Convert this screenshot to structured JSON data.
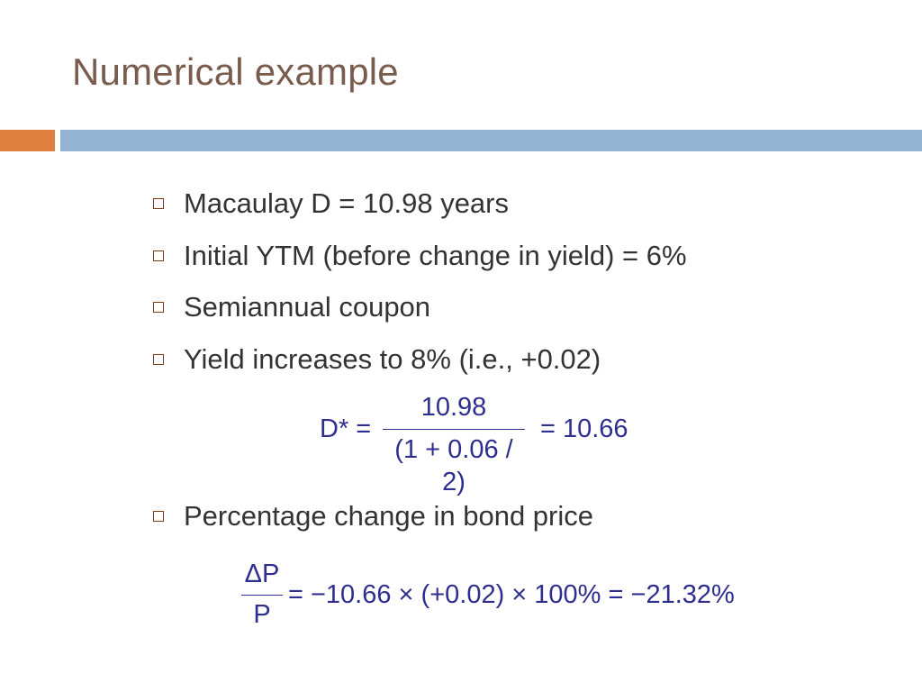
{
  "slide": {
    "title": "Numerical example",
    "bullets": [
      "Macaulay D = 10.98 years",
      "Initial YTM (before change in yield) = 6%",
      "Semiannual coupon",
      "Yield increases to 8% (i.e., +0.02)",
      "Percentage change in bond price"
    ],
    "equation1": {
      "lhs": "D* =",
      "numerator": "10.98",
      "denominator": "(1 + 0.06 / 2)",
      "rhs": "= 10.66"
    },
    "equation2": {
      "numerator": "ΔP",
      "denominator": "P",
      "rhs": "= −10.66 × (+0.02) × 100% = −21.32%"
    }
  },
  "colors": {
    "title": "#7a5c4e",
    "accent_orange": "#e0803f",
    "accent_blue": "#93b3d3",
    "math": "#2e2e8f"
  }
}
